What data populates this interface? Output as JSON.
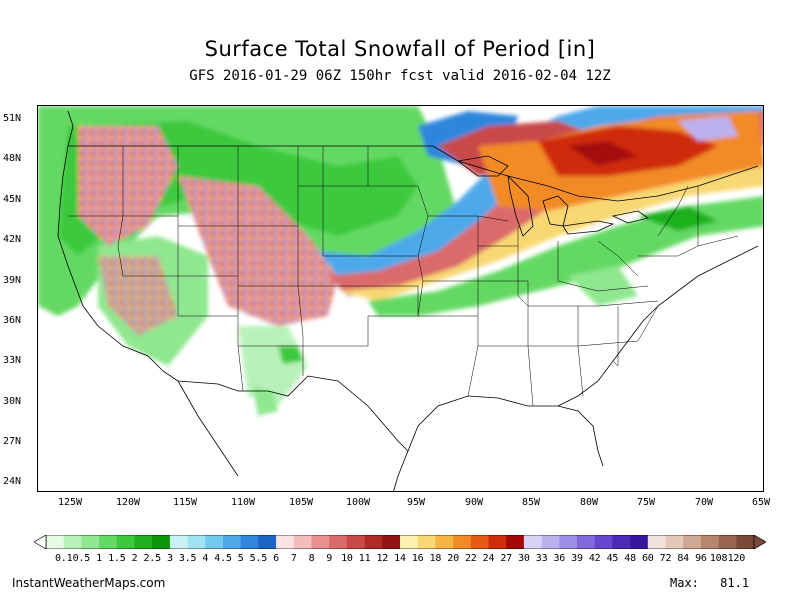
{
  "header": {
    "title": "Surface Total Snowfall of Period [in]",
    "subtitle": "GFS 2016-01-29 06Z 150hr fcst valid 2016-02-04 12Z"
  },
  "map": {
    "lat_labels": [
      "51N",
      "48N",
      "45N",
      "42N",
      "39N",
      "36N",
      "33N",
      "30N",
      "27N",
      "24N"
    ],
    "lon_labels": [
      "125W",
      "120W",
      "115W",
      "110W",
      "105W",
      "100W",
      "95W",
      "90W",
      "85W",
      "80W",
      "75W",
      "70W",
      "65W"
    ]
  },
  "legend": {
    "labels": [
      "0.1",
      "0.5",
      "1",
      "1.5",
      "2",
      "2.5",
      "3",
      "3.5",
      "4",
      "4.5",
      "5",
      "5.5",
      "6",
      "7",
      "8",
      "9",
      "10",
      "11",
      "12",
      "14",
      "16",
      "18",
      "20",
      "22",
      "24",
      "27",
      "30",
      "33",
      "36",
      "39",
      "42",
      "45",
      "48",
      "60",
      "72",
      "84",
      "96",
      "108",
      "120"
    ],
    "colors": [
      "#e5fbe5",
      "#b9f2b9",
      "#8fe78f",
      "#64d964",
      "#3dc93d",
      "#1fb01f",
      "#0a950a",
      "#c9f1f5",
      "#9fe3f0",
      "#74c9ef",
      "#4ea9ea",
      "#2f86dc",
      "#1b63c4",
      "#fbe3e3",
      "#f5bcbc",
      "#e99191",
      "#db6a6a",
      "#c94848",
      "#b02a2a",
      "#931414",
      "#fbf1b0",
      "#f8d873",
      "#f7b544",
      "#f28a25",
      "#e85a14",
      "#d02b0b",
      "#a40808",
      "#d9d2f5",
      "#bcb1ef",
      "#9e8ee7",
      "#8169dc",
      "#6548cd",
      "#4c2ab8",
      "#35169c",
      "#f2e4dc",
      "#e4c8ba",
      "#cfa794",
      "#b7866f",
      "#9a6550",
      "#7c4838"
    ]
  },
  "footer": {
    "site": "InstantWeatherMaps.com",
    "max_label": "Max:",
    "max_value": "81.1"
  }
}
